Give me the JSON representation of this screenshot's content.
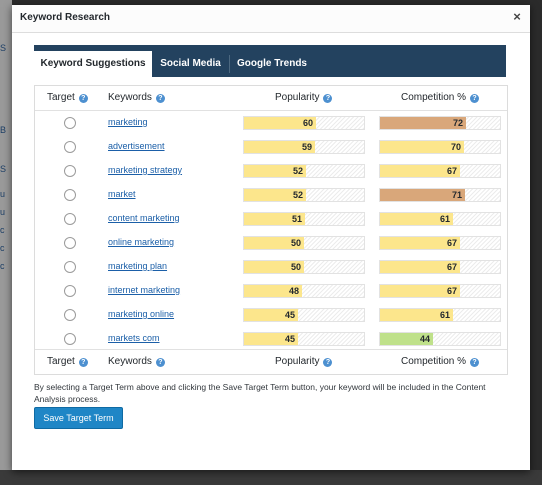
{
  "dialog": {
    "title": "Keyword Research",
    "close_glyph": "×"
  },
  "tabs": [
    {
      "label": "Keyword Suggestions",
      "active": true
    },
    {
      "label": "Social Media",
      "active": false
    },
    {
      "label": "Google Trends",
      "active": false
    }
  ],
  "table": {
    "columns": {
      "target": "Target",
      "keywords": "Keywords",
      "popularity": "Popularity",
      "competition": "Competition %"
    },
    "help_glyph": "?",
    "rows": [
      {
        "keyword": "marketing",
        "popularity": 60,
        "competition": 72,
        "competition_color": "#d9a77a"
      },
      {
        "keyword": "advertisement",
        "popularity": 59,
        "competition": 70,
        "competition_color": "#fce68c"
      },
      {
        "keyword": "marketing strategy",
        "popularity": 52,
        "competition": 67,
        "competition_color": "#fce68c"
      },
      {
        "keyword": "market",
        "popularity": 52,
        "competition": 71,
        "competition_color": "#d9a77a"
      },
      {
        "keyword": "content marketing",
        "popularity": 51,
        "competition": 61,
        "competition_color": "#fce68c"
      },
      {
        "keyword": "online marketing",
        "popularity": 50,
        "competition": 67,
        "competition_color": "#fce68c"
      },
      {
        "keyword": "marketing plan",
        "popularity": 50,
        "competition": 67,
        "competition_color": "#fce68c"
      },
      {
        "keyword": "internet marketing",
        "popularity": 48,
        "competition": 67,
        "competition_color": "#fce68c"
      },
      {
        "keyword": "marketing online",
        "popularity": 45,
        "competition": 61,
        "competition_color": "#fce68c"
      },
      {
        "keyword": "markets com",
        "popularity": 45,
        "competition": 44,
        "competition_color": "#bfe18a"
      }
    ]
  },
  "colors": {
    "popularity_fill": "#fce68c",
    "tabbar": "#23425f",
    "button": "#1f86c6",
    "link": "#1b5fa8"
  },
  "note": "By selecting a Target Term above and clicking the Save Target Term button, your keyword will be included in the Content Analysis process.",
  "save_button_label": "Save Target Term"
}
